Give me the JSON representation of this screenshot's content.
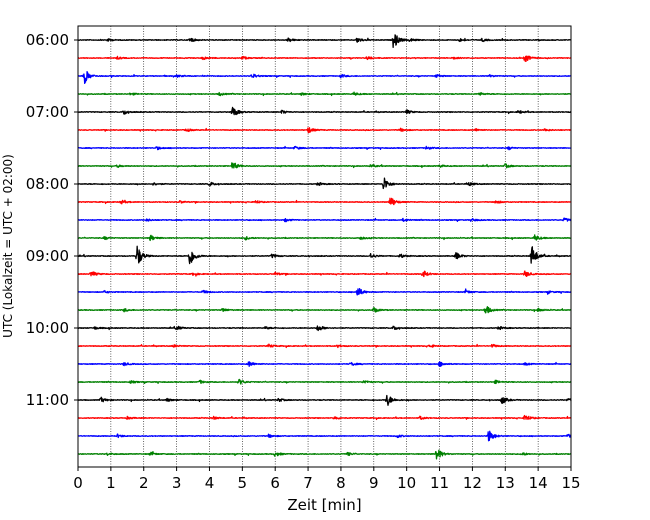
{
  "chart_data": {
    "type": "line",
    "title": "",
    "xlabel": "Zeit  [min]",
    "ylabel": "UTC (Lokalzeit = UTC + 02:00)",
    "xlim": [
      0,
      15
    ],
    "x_ticks": [
      "0",
      "1",
      "2",
      "3",
      "4",
      "5",
      "6",
      "7",
      "8",
      "9",
      "10",
      "11",
      "12",
      "13",
      "14",
      "15"
    ],
    "y_ticks": [
      "06:00",
      "07:00",
      "08:00",
      "09:00",
      "10:00",
      "11:00"
    ],
    "y_tick_rows": [
      0,
      4,
      8,
      12,
      16,
      20
    ],
    "grid": "vertical-dotted",
    "colors": [
      "#000000",
      "#ff0000",
      "#0000ff",
      "#008000"
    ],
    "traces": [
      {
        "color": "#000000",
        "events": [
          [
            9.6,
            2.2
          ],
          [
            3.4,
            0.6
          ],
          [
            6.4,
            0.5
          ],
          [
            8.5,
            0.7
          ],
          [
            10.1,
            0.4
          ],
          [
            11.6,
            0.4
          ],
          [
            12.3,
            0.4
          ],
          [
            0.9,
            0.3
          ]
        ]
      },
      {
        "color": "#ff0000",
        "events": [
          [
            13.6,
            1.0
          ],
          [
            8.8,
            0.5
          ],
          [
            5.0,
            0.4
          ],
          [
            3.8,
            0.4
          ],
          [
            11.4,
            0.3
          ],
          [
            1.2,
            0.3
          ]
        ]
      },
      {
        "color": "#0000ff",
        "events": [
          [
            0.2,
            1.8
          ],
          [
            5.3,
            0.6
          ],
          [
            8.0,
            0.4
          ],
          [
            10.9,
            0.4
          ],
          [
            12.5,
            0.3
          ],
          [
            3.0,
            0.3
          ]
        ]
      },
      {
        "color": "#008000",
        "events": [
          [
            4.3,
            0.4
          ],
          [
            8.4,
            0.4
          ],
          [
            12.2,
            0.4
          ],
          [
            1.6,
            0.3
          ],
          [
            6.8,
            0.3
          ]
        ]
      },
      {
        "color": "#000000",
        "events": [
          [
            4.7,
            1.4
          ],
          [
            1.4,
            0.6
          ],
          [
            6.2,
            0.4
          ],
          [
            10.0,
            0.5
          ],
          [
            13.4,
            0.4
          ]
        ]
      },
      {
        "color": "#ff0000",
        "events": [
          [
            7.0,
            0.8
          ],
          [
            3.3,
            0.4
          ],
          [
            9.8,
            0.4
          ],
          [
            12.1,
            0.3
          ],
          [
            14.2,
            0.3
          ]
        ]
      },
      {
        "color": "#0000ff",
        "events": [
          [
            2.4,
            0.4
          ],
          [
            6.6,
            0.4
          ],
          [
            10.6,
            0.4
          ],
          [
            13.1,
            0.3
          ]
        ]
      },
      {
        "color": "#008000",
        "events": [
          [
            4.7,
            1.1
          ],
          [
            8.9,
            0.4
          ],
          [
            13.0,
            0.5
          ],
          [
            1.2,
            0.3
          ],
          [
            11.0,
            0.3
          ]
        ]
      },
      {
        "color": "#000000",
        "events": [
          [
            9.3,
            1.8
          ],
          [
            4.0,
            0.5
          ],
          [
            7.3,
            0.4
          ],
          [
            11.9,
            0.4
          ],
          [
            2.3,
            0.3
          ]
        ]
      },
      {
        "color": "#ff0000",
        "events": [
          [
            9.5,
            1.4
          ],
          [
            1.3,
            0.5
          ],
          [
            5.4,
            0.4
          ],
          [
            12.7,
            0.4
          ],
          [
            3.1,
            0.3
          ]
        ]
      },
      {
        "color": "#0000ff",
        "events": [
          [
            14.8,
            0.5
          ],
          [
            6.3,
            0.4
          ],
          [
            9.9,
            0.4
          ],
          [
            2.1,
            0.3
          ],
          [
            12.0,
            0.3
          ]
        ]
      },
      {
        "color": "#008000",
        "events": [
          [
            13.9,
            0.8
          ],
          [
            2.2,
            0.7
          ],
          [
            5.1,
            0.4
          ],
          [
            8.6,
            0.4
          ],
          [
            0.8,
            0.3
          ]
        ]
      },
      {
        "color": "#000000",
        "events": [
          [
            1.8,
            2.8
          ],
          [
            3.4,
            2.6
          ],
          [
            13.8,
            2.8
          ],
          [
            11.5,
            0.9
          ],
          [
            5.9,
            0.5
          ],
          [
            8.9,
            0.6
          ],
          [
            9.8,
            0.5
          ]
        ]
      },
      {
        "color": "#ff0000",
        "events": [
          [
            0.4,
            0.8
          ],
          [
            10.5,
            0.9
          ],
          [
            13.6,
            0.8
          ],
          [
            6.0,
            0.4
          ],
          [
            3.5,
            0.3
          ]
        ]
      },
      {
        "color": "#0000ff",
        "events": [
          [
            8.5,
            1.3
          ],
          [
            3.8,
            0.4
          ],
          [
            11.8,
            0.4
          ],
          [
            0.8,
            0.3
          ],
          [
            14.3,
            0.3
          ]
        ]
      },
      {
        "color": "#008000",
        "events": [
          [
            12.4,
            1.2
          ],
          [
            9.0,
            0.6
          ],
          [
            1.4,
            0.4
          ],
          [
            4.4,
            0.4
          ],
          [
            14.0,
            0.4
          ]
        ]
      },
      {
        "color": "#000000",
        "events": [
          [
            7.3,
            0.8
          ],
          [
            3.0,
            0.5
          ],
          [
            9.6,
            0.5
          ],
          [
            12.8,
            0.4
          ],
          [
            5.7,
            0.3
          ],
          [
            0.5,
            0.3
          ]
        ]
      },
      {
        "color": "#ff0000",
        "events": [
          [
            5.8,
            0.4
          ],
          [
            10.7,
            0.4
          ],
          [
            12.6,
            0.4
          ],
          [
            2.9,
            0.3
          ],
          [
            7.9,
            0.3
          ]
        ]
      },
      {
        "color": "#0000ff",
        "events": [
          [
            5.2,
            0.7
          ],
          [
            11.0,
            0.6
          ],
          [
            1.4,
            0.4
          ],
          [
            8.3,
            0.4
          ],
          [
            13.6,
            0.3
          ]
        ]
      },
      {
        "color": "#008000",
        "events": [
          [
            4.9,
            0.7
          ],
          [
            3.7,
            0.4
          ],
          [
            8.7,
            0.4
          ],
          [
            12.7,
            0.4
          ],
          [
            1.6,
            0.3
          ]
        ]
      },
      {
        "color": "#000000",
        "events": [
          [
            9.4,
            1.6
          ],
          [
            12.9,
            1.0
          ],
          [
            0.7,
            0.6
          ],
          [
            2.7,
            0.4
          ],
          [
            6.1,
            0.4
          ],
          [
            14.9,
            0.4
          ]
        ]
      },
      {
        "color": "#ff0000",
        "events": [
          [
            13.6,
            0.9
          ],
          [
            4.1,
            0.4
          ],
          [
            7.8,
            0.4
          ],
          [
            10.4,
            0.4
          ],
          [
            1.5,
            0.3
          ]
        ]
      },
      {
        "color": "#0000ff",
        "events": [
          [
            12.5,
            1.6
          ],
          [
            1.2,
            0.4
          ],
          [
            5.8,
            0.4
          ],
          [
            9.7,
            0.4
          ],
          [
            14.9,
            0.4
          ]
        ]
      },
      {
        "color": "#008000",
        "events": [
          [
            10.9,
            1.7
          ],
          [
            6.0,
            0.6
          ],
          [
            2.2,
            0.4
          ],
          [
            8.2,
            0.4
          ],
          [
            13.5,
            0.4
          ],
          [
            0.9,
            0.3
          ]
        ]
      }
    ]
  }
}
